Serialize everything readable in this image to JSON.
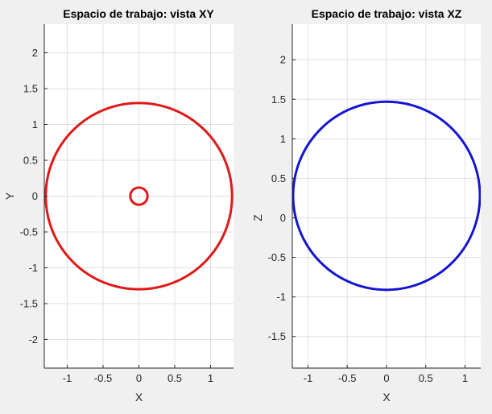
{
  "colors": {
    "background": "#f0f0f0",
    "axes_background": "#ffffff",
    "grid": "#dfdfdf",
    "axis_line": "#262626",
    "series_xy": "#e01818",
    "series_xz": "#1414d6"
  },
  "chart_data": [
    {
      "type": "line",
      "title": "Espacio de trabajo: vista XY",
      "xlabel": "X",
      "ylabel": "Y",
      "xlim": [
        -1.32,
        1.32
      ],
      "ylim": [
        -2.4,
        2.4
      ],
      "xticks": [
        -1,
        -0.5,
        0,
        0.5,
        1
      ],
      "xtick_labels": [
        "-1",
        "-0.5",
        "0",
        "0.5",
        "1"
      ],
      "yticks": [
        -2,
        -1.5,
        -1,
        -0.5,
        0,
        0.5,
        1,
        1.5,
        2
      ],
      "ytick_labels": [
        "-2",
        "-1.5",
        "-1",
        "-0.5",
        "0",
        "0.5",
        "1",
        "1.5",
        "2"
      ],
      "grid": true,
      "series": [
        {
          "shape": "circle",
          "center": [
            0,
            0
          ],
          "radius": 1.3,
          "color": "#e01818"
        },
        {
          "shape": "circle",
          "center": [
            0,
            0
          ],
          "radius": 0.12,
          "color": "#e01818"
        }
      ]
    },
    {
      "type": "line",
      "title": "Espacio de trabajo: vista XZ",
      "xlabel": "X",
      "ylabel": "Z",
      "xlim": [
        -1.2,
        1.2
      ],
      "ylim": [
        -1.9,
        2.45
      ],
      "xticks": [
        -1,
        -0.5,
        0,
        0.5,
        1
      ],
      "xtick_labels": [
        "-1",
        "-0.5",
        "0",
        "0.5",
        "1"
      ],
      "yticks": [
        -1.5,
        -1,
        -0.5,
        0,
        0.5,
        1,
        1.5,
        2
      ],
      "ytick_labels": [
        "-1.5",
        "-1",
        "-0.5",
        "0",
        "0.5",
        "1",
        "1.5",
        "2"
      ],
      "grid": true,
      "series": [
        {
          "shape": "circle",
          "center": [
            0,
            0.28
          ],
          "radius": 1.19,
          "color": "#1414d6"
        }
      ]
    }
  ]
}
